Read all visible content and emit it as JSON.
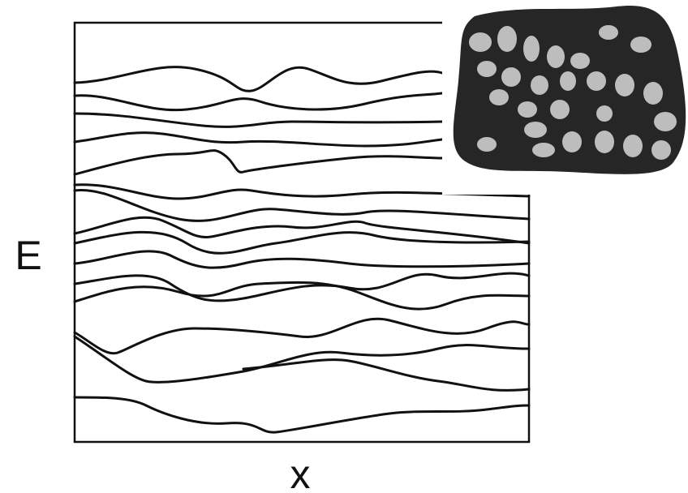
{
  "labels": {
    "y_axis": "E",
    "x_axis": "x"
  }
}
